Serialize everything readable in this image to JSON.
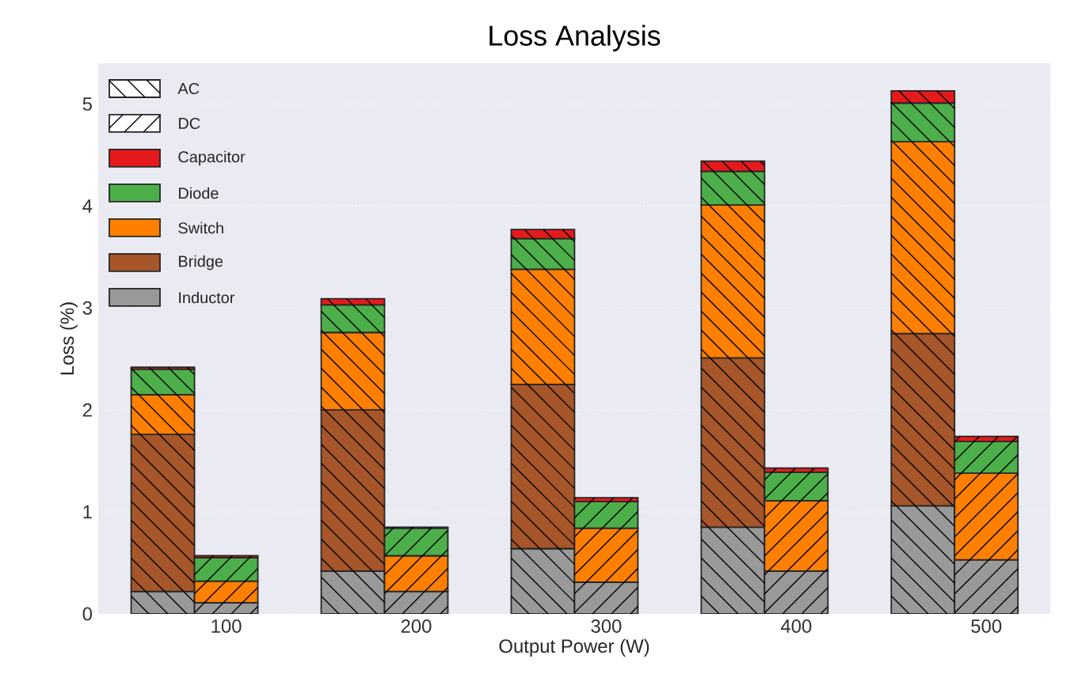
{
  "chart_data": {
    "type": "bar",
    "title": "Loss Analysis",
    "xlabel": "Output Power (W)",
    "ylabel": "Loss (%)",
    "categories": [
      null,
      "100",
      null,
      "200",
      null,
      "300",
      null,
      "400",
      null,
      "500"
    ],
    "stacked": true,
    "ylim": [
      0,
      5.4
    ],
    "yticks": [
      0,
      1,
      2,
      3,
      4,
      5
    ],
    "grid": "y",
    "legend": "top left",
    "series": [
      {
        "name": "Inductor",
        "color": "#999999",
        "values": [
          0.22,
          0.11,
          0.42,
          0.22,
          0.64,
          0.31,
          0.85,
          0.42,
          1.06,
          0.53
        ]
      },
      {
        "name": "Bridge",
        "color": "#a65628",
        "values": [
          1.54,
          null,
          1.58,
          null,
          1.61,
          null,
          1.66,
          null,
          1.69,
          null
        ]
      },
      {
        "name": "Switch",
        "color": "#ff7f00",
        "values": [
          0.39,
          0.21,
          0.76,
          0.35,
          1.13,
          0.53,
          1.5,
          0.69,
          1.88,
          0.85
        ]
      },
      {
        "name": "Diode",
        "color": "#4daf4a",
        "values": [
          0.25,
          0.23,
          0.27,
          0.27,
          0.3,
          0.26,
          0.33,
          0.28,
          0.38,
          0.31
        ]
      },
      {
        "name": "Capacitor",
        "color": "#e41a1c",
        "values": [
          0.02,
          0.02,
          0.06,
          0.01,
          0.09,
          0.04,
          0.1,
          0.04,
          0.12,
          0.05
        ]
      },
      {
        "name": "AC",
        "color": "#ffffff",
        "values": [
          null,
          null,
          null,
          null,
          null,
          null,
          null,
          null,
          null,
          null
        ]
      },
      {
        "name": "DC",
        "color": "#ffffff",
        "values": [
          null,
          null,
          null,
          null,
          null,
          null,
          null,
          null,
          null,
          null
        ]
      }
    ]
  }
}
